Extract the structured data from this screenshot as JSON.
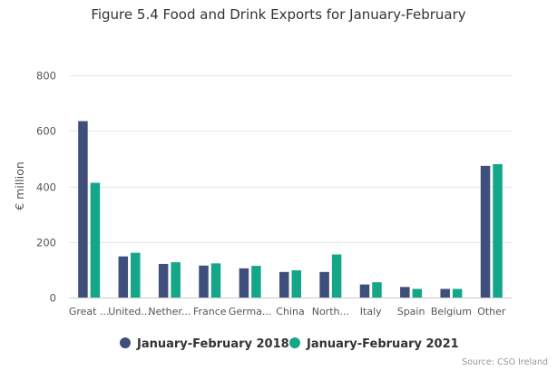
{
  "chart_data": {
    "type": "bar",
    "title": "Figure 5.4 Food and Drink Exports for January-February",
    "ylabel": "€ million",
    "xlabel": "",
    "ylim": [
      0,
      800
    ],
    "yticks": [
      0,
      200,
      400,
      600,
      800
    ],
    "grid": true,
    "legend_position": "bottom",
    "categories": [
      "Great ...",
      "United...",
      "Nether...",
      "France",
      "Germa...",
      "China",
      "North...",
      "Italy",
      "Spain",
      "Belgium",
      "Other"
    ],
    "series": [
      {
        "name": "January-February 2018",
        "color": "#3d4f7a",
        "values": [
          635,
          148,
          121,
          115,
          105,
          92,
          92,
          47,
          38,
          31,
          474
        ]
      },
      {
        "name": "January-February 2021",
        "color": "#13a689",
        "values": [
          413,
          161,
          127,
          123,
          114,
          98,
          155,
          55,
          31,
          31,
          480
        ]
      }
    ],
    "credit": "Source: CSO Ireland"
  }
}
